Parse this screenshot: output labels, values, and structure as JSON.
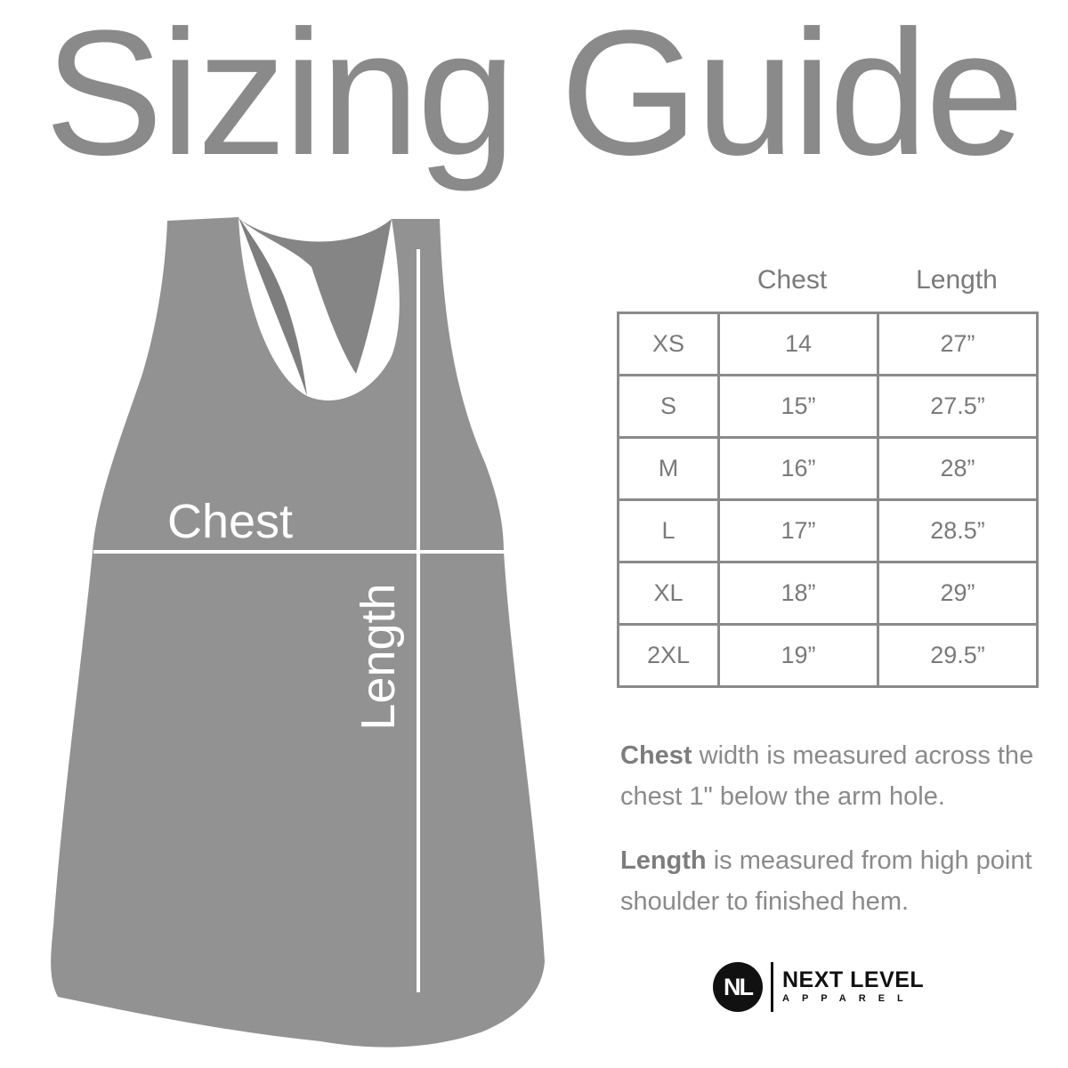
{
  "title": "Sizing Guide",
  "diagram": {
    "chest_label": "Chest",
    "length_label": "Length",
    "garment_color": "#929292"
  },
  "table": {
    "headers": [
      "",
      "Chest",
      "Length"
    ],
    "rows": [
      [
        "XS",
        "14",
        "27”"
      ],
      [
        "S",
        "15”",
        "27.5”"
      ],
      [
        "M",
        "16”",
        "28”"
      ],
      [
        "L",
        "17”",
        "28.5”"
      ],
      [
        "XL",
        "18”",
        "29”"
      ],
      [
        "2XL",
        "19”",
        "29.5”"
      ]
    ]
  },
  "notes": [
    {
      "term": "Chest",
      "text": " width is measured across the chest 1\" below the arm hole."
    },
    {
      "term": "Length",
      "text": " is measured from high point shoulder to finished hem."
    }
  ],
  "logo": {
    "mark": "NL",
    "name": "NEXT LEVEL",
    "sub": "APPAREL"
  }
}
